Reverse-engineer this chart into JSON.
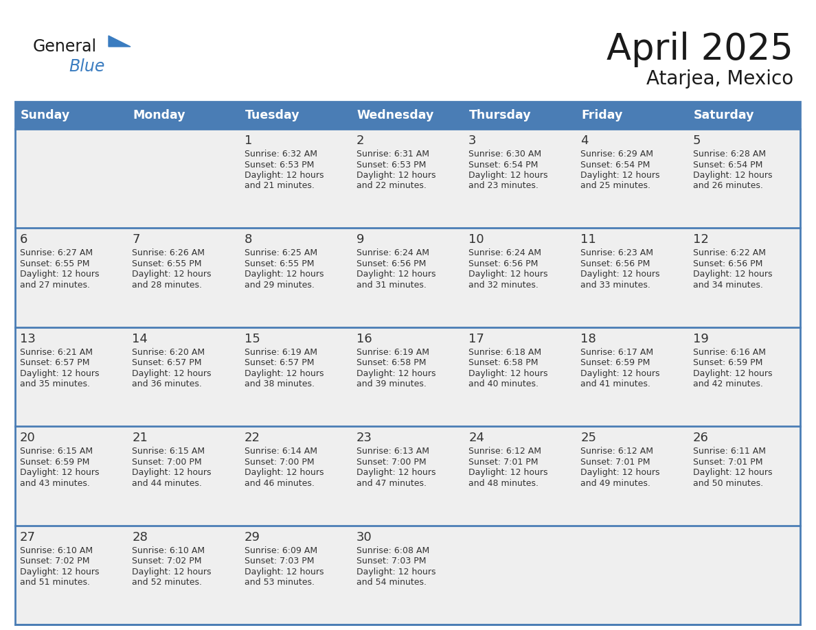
{
  "title": "April 2025",
  "subtitle": "Atarjea, Mexico",
  "days_of_week": [
    "Sunday",
    "Monday",
    "Tuesday",
    "Wednesday",
    "Thursday",
    "Friday",
    "Saturday"
  ],
  "header_bg": "#4a7db5",
  "header_fg": "#ffffff",
  "cell_bg": "#efefef",
  "border_color": "#4a7db5",
  "text_color": "#333333",
  "title_color": "#1a1a1a",
  "logo_general_color": "#1a1a1a",
  "logo_blue_color": "#3a7cc0",
  "logo_triangle_color": "#3a7cc0",
  "calendar_data": [
    [
      {
        "day": "",
        "sunrise": "",
        "sunset": "",
        "daylight": ""
      },
      {
        "day": "",
        "sunrise": "",
        "sunset": "",
        "daylight": ""
      },
      {
        "day": "1",
        "sunrise": "Sunrise: 6:32 AM",
        "sunset": "Sunset: 6:53 PM",
        "daylight": "Daylight: 12 hours and 21 minutes."
      },
      {
        "day": "2",
        "sunrise": "Sunrise: 6:31 AM",
        "sunset": "Sunset: 6:53 PM",
        "daylight": "Daylight: 12 hours and 22 minutes."
      },
      {
        "day": "3",
        "sunrise": "Sunrise: 6:30 AM",
        "sunset": "Sunset: 6:54 PM",
        "daylight": "Daylight: 12 hours and 23 minutes."
      },
      {
        "day": "4",
        "sunrise": "Sunrise: 6:29 AM",
        "sunset": "Sunset: 6:54 PM",
        "daylight": "Daylight: 12 hours and 25 minutes."
      },
      {
        "day": "5",
        "sunrise": "Sunrise: 6:28 AM",
        "sunset": "Sunset: 6:54 PM",
        "daylight": "Daylight: 12 hours and 26 minutes."
      }
    ],
    [
      {
        "day": "6",
        "sunrise": "Sunrise: 6:27 AM",
        "sunset": "Sunset: 6:55 PM",
        "daylight": "Daylight: 12 hours and 27 minutes."
      },
      {
        "day": "7",
        "sunrise": "Sunrise: 6:26 AM",
        "sunset": "Sunset: 6:55 PM",
        "daylight": "Daylight: 12 hours and 28 minutes."
      },
      {
        "day": "8",
        "sunrise": "Sunrise: 6:25 AM",
        "sunset": "Sunset: 6:55 PM",
        "daylight": "Daylight: 12 hours and 29 minutes."
      },
      {
        "day": "9",
        "sunrise": "Sunrise: 6:24 AM",
        "sunset": "Sunset: 6:56 PM",
        "daylight": "Daylight: 12 hours and 31 minutes."
      },
      {
        "day": "10",
        "sunrise": "Sunrise: 6:24 AM",
        "sunset": "Sunset: 6:56 PM",
        "daylight": "Daylight: 12 hours and 32 minutes."
      },
      {
        "day": "11",
        "sunrise": "Sunrise: 6:23 AM",
        "sunset": "Sunset: 6:56 PM",
        "daylight": "Daylight: 12 hours and 33 minutes."
      },
      {
        "day": "12",
        "sunrise": "Sunrise: 6:22 AM",
        "sunset": "Sunset: 6:56 PM",
        "daylight": "Daylight: 12 hours and 34 minutes."
      }
    ],
    [
      {
        "day": "13",
        "sunrise": "Sunrise: 6:21 AM",
        "sunset": "Sunset: 6:57 PM",
        "daylight": "Daylight: 12 hours and 35 minutes."
      },
      {
        "day": "14",
        "sunrise": "Sunrise: 6:20 AM",
        "sunset": "Sunset: 6:57 PM",
        "daylight": "Daylight: 12 hours and 36 minutes."
      },
      {
        "day": "15",
        "sunrise": "Sunrise: 6:19 AM",
        "sunset": "Sunset: 6:57 PM",
        "daylight": "Daylight: 12 hours and 38 minutes."
      },
      {
        "day": "16",
        "sunrise": "Sunrise: 6:19 AM",
        "sunset": "Sunset: 6:58 PM",
        "daylight": "Daylight: 12 hours and 39 minutes."
      },
      {
        "day": "17",
        "sunrise": "Sunrise: 6:18 AM",
        "sunset": "Sunset: 6:58 PM",
        "daylight": "Daylight: 12 hours and 40 minutes."
      },
      {
        "day": "18",
        "sunrise": "Sunrise: 6:17 AM",
        "sunset": "Sunset: 6:59 PM",
        "daylight": "Daylight: 12 hours and 41 minutes."
      },
      {
        "day": "19",
        "sunrise": "Sunrise: 6:16 AM",
        "sunset": "Sunset: 6:59 PM",
        "daylight": "Daylight: 12 hours and 42 minutes."
      }
    ],
    [
      {
        "day": "20",
        "sunrise": "Sunrise: 6:15 AM",
        "sunset": "Sunset: 6:59 PM",
        "daylight": "Daylight: 12 hours and 43 minutes."
      },
      {
        "day": "21",
        "sunrise": "Sunrise: 6:15 AM",
        "sunset": "Sunset: 7:00 PM",
        "daylight": "Daylight: 12 hours and 44 minutes."
      },
      {
        "day": "22",
        "sunrise": "Sunrise: 6:14 AM",
        "sunset": "Sunset: 7:00 PM",
        "daylight": "Daylight: 12 hours and 46 minutes."
      },
      {
        "day": "23",
        "sunrise": "Sunrise: 6:13 AM",
        "sunset": "Sunset: 7:00 PM",
        "daylight": "Daylight: 12 hours and 47 minutes."
      },
      {
        "day": "24",
        "sunrise": "Sunrise: 6:12 AM",
        "sunset": "Sunset: 7:01 PM",
        "daylight": "Daylight: 12 hours and 48 minutes."
      },
      {
        "day": "25",
        "sunrise": "Sunrise: 6:12 AM",
        "sunset": "Sunset: 7:01 PM",
        "daylight": "Daylight: 12 hours and 49 minutes."
      },
      {
        "day": "26",
        "sunrise": "Sunrise: 6:11 AM",
        "sunset": "Sunset: 7:01 PM",
        "daylight": "Daylight: 12 hours and 50 minutes."
      }
    ],
    [
      {
        "day": "27",
        "sunrise": "Sunrise: 6:10 AM",
        "sunset": "Sunset: 7:02 PM",
        "daylight": "Daylight: 12 hours and 51 minutes."
      },
      {
        "day": "28",
        "sunrise": "Sunrise: 6:10 AM",
        "sunset": "Sunset: 7:02 PM",
        "daylight": "Daylight: 12 hours and 52 minutes."
      },
      {
        "day": "29",
        "sunrise": "Sunrise: 6:09 AM",
        "sunset": "Sunset: 7:03 PM",
        "daylight": "Daylight: 12 hours and 53 minutes."
      },
      {
        "day": "30",
        "sunrise": "Sunrise: 6:08 AM",
        "sunset": "Sunset: 7:03 PM",
        "daylight": "Daylight: 12 hours and 54 minutes."
      },
      {
        "day": "",
        "sunrise": "",
        "sunset": "",
        "daylight": ""
      },
      {
        "day": "",
        "sunrise": "",
        "sunset": "",
        "daylight": ""
      },
      {
        "day": "",
        "sunrise": "",
        "sunset": "",
        "daylight": ""
      }
    ]
  ]
}
